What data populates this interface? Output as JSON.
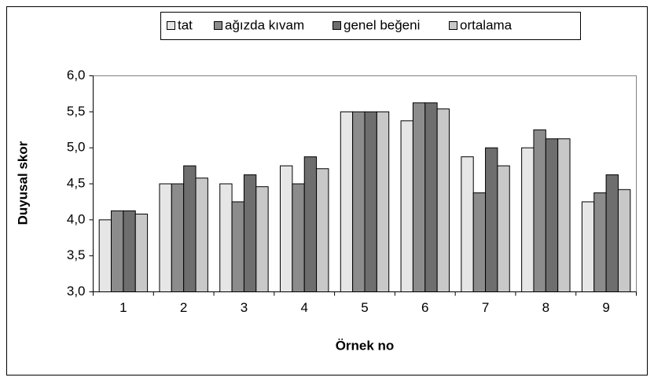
{
  "chart_data": {
    "type": "bar",
    "xlabel": "Örnek no",
    "ylabel": "Duyusal skor",
    "categories": [
      "1",
      "2",
      "3",
      "4",
      "5",
      "6",
      "7",
      "8",
      "9"
    ],
    "series": [
      {
        "name": "tat",
        "color": "#e6e6e6",
        "values": [
          4.0,
          4.5,
          4.5,
          4.75,
          5.5,
          5.375,
          4.875,
          5.0,
          4.25
        ]
      },
      {
        "name": "ağızda kıvam",
        "color": "#8c8c8c",
        "values": [
          4.125,
          4.5,
          4.25,
          4.5,
          5.5,
          5.625,
          4.375,
          5.25,
          4.375
        ]
      },
      {
        "name": "genel beğeni",
        "color": "#6e6e6e",
        "values": [
          4.125,
          4.75,
          4.625,
          4.875,
          5.5,
          5.625,
          5.0,
          5.125,
          4.625
        ]
      },
      {
        "name": "ortalama",
        "color": "#c8c8c8",
        "values": [
          4.08,
          4.58,
          4.46,
          4.71,
          5.5,
          5.54,
          4.75,
          5.125,
          4.42
        ]
      }
    ],
    "ylim": [
      3.0,
      6.0
    ],
    "yticks": [
      {
        "value": 3.0,
        "label": "3,0"
      },
      {
        "value": 3.5,
        "label": "3,5"
      },
      {
        "value": 4.0,
        "label": "4,0"
      },
      {
        "value": 4.5,
        "label": "4,5"
      },
      {
        "value": 5.0,
        "label": "5,0"
      },
      {
        "value": 5.5,
        "label": "5,5"
      },
      {
        "value": 6.0,
        "label": "6,0"
      }
    ],
    "legend": "top"
  }
}
